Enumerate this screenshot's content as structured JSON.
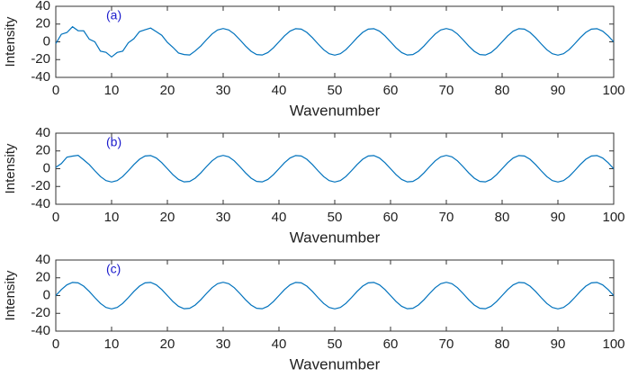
{
  "chart_data": [
    {
      "type": "line",
      "annotation": "(a)",
      "xlabel": "Wavenumber",
      "ylabel": "Intensity",
      "xlim": [
        0,
        100
      ],
      "xticks": [
        0,
        10,
        20,
        30,
        40,
        50,
        60,
        70,
        80,
        90,
        100
      ],
      "ylim": [
        -40,
        40
      ],
      "yticks": [
        -40,
        -20,
        0,
        20,
        40
      ],
      "x": [
        0,
        1,
        2,
        3,
        4,
        5,
        6,
        7,
        8,
        9,
        10,
        11,
        12,
        13,
        14,
        15,
        16,
        17,
        18,
        19,
        20,
        21,
        22,
        23,
        24,
        25,
        26,
        27,
        28,
        29,
        30,
        31,
        32,
        33,
        34,
        35,
        36,
        37,
        38,
        39,
        40,
        41,
        42,
        43,
        44,
        45,
        46,
        47,
        48,
        49,
        50,
        51,
        52,
        53,
        54,
        55,
        56,
        57,
        58,
        59,
        60,
        61,
        62,
        63,
        64,
        65,
        66,
        67,
        68,
        69,
        70,
        71,
        72,
        73,
        74,
        75,
        76,
        77,
        78,
        79,
        80,
        81,
        82,
        83,
        84,
        85,
        86,
        87,
        88,
        89,
        90,
        91,
        92,
        93,
        94,
        95,
        96,
        97,
        98,
        99,
        100
      ],
      "series": [
        {
          "color": "#0072bd",
          "values": [
            -2,
            8.5,
            10.5,
            17,
            12.5,
            12.4,
            3,
            0,
            -10.5,
            -11.8,
            -17,
            -12,
            -10.5,
            -1,
            3.5,
            11.5,
            13.6,
            15.5,
            11.5,
            7.4,
            -0.6,
            -6.2,
            -12.6,
            -14.3,
            -14.8,
            -10.2,
            -4.6,
            2.3,
            8.8,
            13.4,
            15,
            13.4,
            8.8,
            2.3,
            -4.6,
            -10.6,
            -14.3,
            -14.8,
            -12.1,
            -6.8,
            0,
            6.8,
            12.1,
            14.8,
            14.3,
            10.6,
            4.6,
            -2.3,
            -8.8,
            -13.4,
            -15,
            -13.4,
            -8.8,
            -2.3,
            4.6,
            10.6,
            14.3,
            14.8,
            12.1,
            6.8,
            0,
            -6.8,
            -12.1,
            -14.8,
            -14.3,
            -10.6,
            -4.6,
            2.3,
            8.8,
            13.4,
            15,
            13.4,
            8.8,
            2.3,
            -4.6,
            -10.6,
            -14.3,
            -14.8,
            -12.1,
            -6.8,
            0,
            6.8,
            12.1,
            14.8,
            14.3,
            10.6,
            4.6,
            -2.3,
            -8.8,
            -13.4,
            -15,
            -13.4,
            -8.8,
            -2.3,
            4.6,
            10.6,
            14.3,
            14.8,
            12.1,
            6.8,
            0
          ]
        }
      ]
    },
    {
      "type": "line",
      "annotation": "(b)",
      "xlabel": "Wavenumber",
      "ylabel": "Intensity",
      "xlim": [
        0,
        100
      ],
      "xticks": [
        0,
        10,
        20,
        30,
        40,
        50,
        60,
        70,
        80,
        90,
        100
      ],
      "ylim": [
        -40,
        40
      ],
      "yticks": [
        -40,
        -20,
        0,
        20,
        40
      ],
      "x": [
        0,
        1,
        2,
        3,
        4,
        5,
        6,
        7,
        8,
        9,
        10,
        11,
        12,
        13,
        14,
        15,
        16,
        17,
        18,
        19,
        20,
        21,
        22,
        23,
        24,
        25,
        26,
        27,
        28,
        29,
        30,
        31,
        32,
        33,
        34,
        35,
        36,
        37,
        38,
        39,
        40,
        41,
        42,
        43,
        44,
        45,
        46,
        47,
        48,
        49,
        50,
        51,
        52,
        53,
        54,
        55,
        56,
        57,
        58,
        59,
        60,
        61,
        62,
        63,
        64,
        65,
        66,
        67,
        68,
        69,
        70,
        71,
        72,
        73,
        74,
        75,
        76,
        77,
        78,
        79,
        80,
        81,
        82,
        83,
        84,
        85,
        86,
        87,
        88,
        89,
        90,
        91,
        92,
        93,
        94,
        95,
        96,
        97,
        98,
        99,
        100
      ],
      "series": [
        {
          "color": "#0072bd",
          "values": [
            1.5,
            5.8,
            13,
            14.2,
            15,
            10,
            4.6,
            -2.3,
            -8.8,
            -13.4,
            -15,
            -13.4,
            -8.8,
            -2.3,
            4.6,
            10.6,
            14.3,
            14.8,
            12.1,
            6.8,
            0,
            -6.8,
            -12.1,
            -14.8,
            -14.3,
            -10.6,
            -4.6,
            2.3,
            8.8,
            13.4,
            15,
            13.4,
            8.8,
            2.3,
            -4.6,
            -10.6,
            -14.3,
            -14.8,
            -12.1,
            -6.8,
            0,
            6.8,
            12.1,
            14.8,
            14.3,
            10.6,
            4.6,
            -2.3,
            -8.8,
            -13.4,
            -15,
            -13.4,
            -8.8,
            -2.3,
            4.6,
            10.6,
            14.3,
            14.8,
            12.1,
            6.8,
            0,
            -6.8,
            -12.1,
            -14.8,
            -14.3,
            -10.6,
            -4.6,
            2.3,
            8.8,
            13.4,
            15,
            13.4,
            8.8,
            2.3,
            -4.6,
            -10.6,
            -14.3,
            -14.8,
            -12.1,
            -6.8,
            0,
            6.8,
            12.1,
            14.8,
            14.3,
            10.6,
            4.6,
            -2.3,
            -8.8,
            -13.4,
            -15,
            -13.4,
            -8.8,
            -2.3,
            4.6,
            10.6,
            14.3,
            14.8,
            12.1,
            6.8,
            0
          ]
        }
      ]
    },
    {
      "type": "line",
      "annotation": "(c)",
      "xlabel": "Wavenumber",
      "ylabel": "Intensity",
      "xlim": [
        0,
        100
      ],
      "xticks": [
        0,
        10,
        20,
        30,
        40,
        50,
        60,
        70,
        80,
        90,
        100
      ],
      "ylim": [
        -40,
        40
      ],
      "yticks": [
        -40,
        -20,
        0,
        20,
        40
      ],
      "x": [
        0,
        1,
        2,
        3,
        4,
        5,
        6,
        7,
        8,
        9,
        10,
        11,
        12,
        13,
        14,
        15,
        16,
        17,
        18,
        19,
        20,
        21,
        22,
        23,
        24,
        25,
        26,
        27,
        28,
        29,
        30,
        31,
        32,
        33,
        34,
        35,
        36,
        37,
        38,
        39,
        40,
        41,
        42,
        43,
        44,
        45,
        46,
        47,
        48,
        49,
        50,
        51,
        52,
        53,
        54,
        55,
        56,
        57,
        58,
        59,
        60,
        61,
        62,
        63,
        64,
        65,
        66,
        67,
        68,
        69,
        70,
        71,
        72,
        73,
        74,
        75,
        76,
        77,
        78,
        79,
        80,
        81,
        82,
        83,
        84,
        85,
        86,
        87,
        88,
        89,
        90,
        91,
        92,
        93,
        94,
        95,
        96,
        97,
        98,
        99,
        100
      ],
      "series": [
        {
          "color": "#0072bd",
          "values": [
            0,
            6.8,
            12.1,
            14.8,
            14.3,
            10.6,
            4.6,
            -2.3,
            -8.8,
            -13.4,
            -15,
            -13.4,
            -8.8,
            -2.3,
            4.6,
            10.6,
            14.3,
            14.8,
            12.1,
            6.8,
            0,
            -6.8,
            -12.1,
            -14.8,
            -14.3,
            -10.6,
            -4.6,
            2.3,
            8.8,
            13.4,
            15,
            13.4,
            8.8,
            2.3,
            -4.6,
            -10.6,
            -14.3,
            -14.8,
            -12.1,
            -6.8,
            0,
            6.8,
            12.1,
            14.8,
            14.3,
            10.6,
            4.6,
            -2.3,
            -8.8,
            -13.4,
            -15,
            -13.4,
            -8.8,
            -2.3,
            4.6,
            10.6,
            14.3,
            14.8,
            12.1,
            6.8,
            0,
            -6.8,
            -12.1,
            -14.8,
            -14.3,
            -10.6,
            -4.6,
            2.3,
            8.8,
            13.4,
            15,
            13.4,
            8.8,
            2.3,
            -4.6,
            -10.6,
            -14.3,
            -14.8,
            -12.1,
            -6.8,
            0,
            6.8,
            12.1,
            14.8,
            14.3,
            10.6,
            4.6,
            -2.3,
            -8.8,
            -13.4,
            -15,
            -13.4,
            -8.8,
            -2.3,
            4.6,
            10.6,
            14.3,
            14.8,
            12.1,
            6.8,
            0
          ]
        }
      ]
    }
  ]
}
